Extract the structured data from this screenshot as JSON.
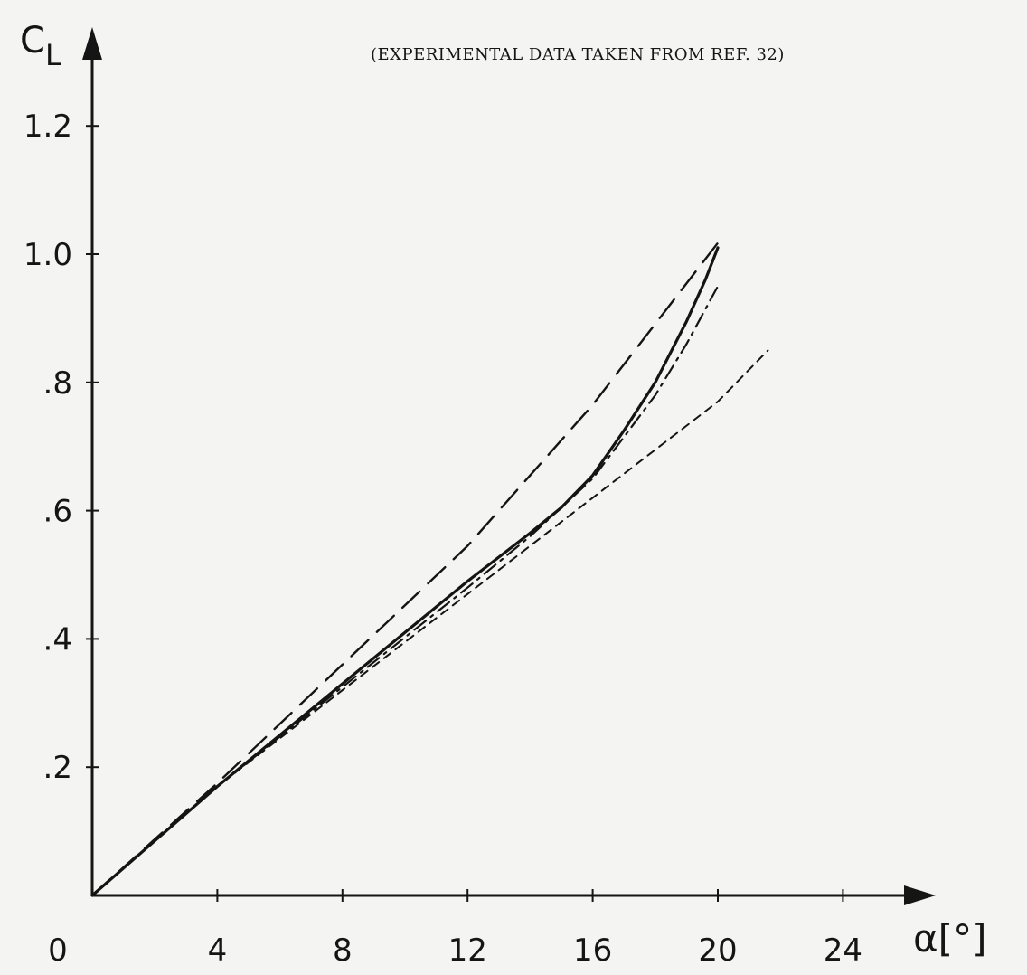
{
  "chart_data": {
    "type": "line",
    "annotation": "(EXPERIMENTAL DATA TAKEN FROM REF. 32)",
    "ylabel": {
      "main": "C",
      "subscript": "L"
    },
    "xlabel": "α[°]",
    "xlabel_display": "α[°]",
    "x_ticks": [
      0,
      4,
      8,
      12,
      16,
      20,
      24
    ],
    "x_tick_labels": [
      "0",
      "4",
      "8",
      "12",
      "16",
      "20",
      "24"
    ],
    "y_ticks": [
      0.2,
      0.4,
      0.6,
      0.8,
      1.0,
      1.2
    ],
    "y_tick_labels": [
      ".2",
      ".4",
      ".6",
      ".8",
      "1.0",
      "1.2"
    ],
    "xlim": [
      0,
      26
    ],
    "ylim": [
      0,
      1.32
    ],
    "grid": false,
    "legend": "none",
    "series": [
      {
        "style": "solid",
        "x": [
          0,
          2,
          4,
          6,
          8,
          10,
          12,
          14,
          15,
          16,
          17,
          18,
          19,
          19.6,
          20
        ],
        "y": [
          0,
          0.085,
          0.17,
          0.25,
          0.33,
          0.41,
          0.49,
          0.565,
          0.605,
          0.655,
          0.725,
          0.8,
          0.895,
          0.96,
          1.01
        ]
      },
      {
        "style": "long-dash",
        "x": [
          0,
          4,
          8,
          12,
          16,
          20.2
        ],
        "y": [
          0,
          0.175,
          0.36,
          0.545,
          0.765,
          1.03
        ]
      },
      {
        "style": "dash-dot",
        "x": [
          0,
          4,
          8,
          12,
          14,
          16,
          17,
          18,
          19,
          20
        ],
        "y": [
          0,
          0.17,
          0.325,
          0.48,
          0.56,
          0.65,
          0.715,
          0.78,
          0.86,
          0.95
        ]
      },
      {
        "style": "short-dash",
        "x": [
          0,
          4,
          8,
          12,
          16,
          20,
          21.6
        ],
        "y": [
          0,
          0.17,
          0.32,
          0.47,
          0.62,
          0.77,
          0.85
        ]
      }
    ]
  }
}
